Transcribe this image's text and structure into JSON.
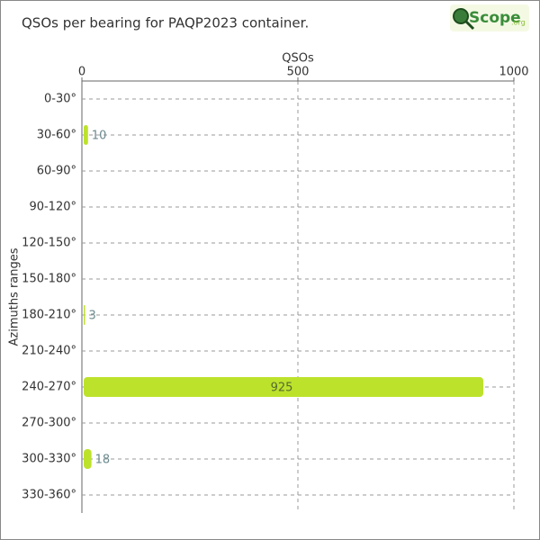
{
  "chart_data": {
    "type": "barh",
    "title": "QSOs per bearing for PAQP2023 container.",
    "logo": "Scope",
    "logo_suffix": ".org",
    "x_label": "QSOs",
    "y_label": "Azimuths ranges",
    "categories": [
      "0-30°",
      "30-60°",
      "60-90°",
      "90-120°",
      "120-150°",
      "150-180°",
      "180-210°",
      "210-240°",
      "240-270°",
      "270-300°",
      "300-330°",
      "330-360°"
    ],
    "values": [
      0,
      10,
      0,
      0,
      0,
      0,
      3,
      0,
      925,
      0,
      18,
      0
    ],
    "color": "#bde22c",
    "xlim": [
      0,
      1000
    ],
    "xticks": [
      0,
      500,
      1000
    ],
    "grid": true
  }
}
